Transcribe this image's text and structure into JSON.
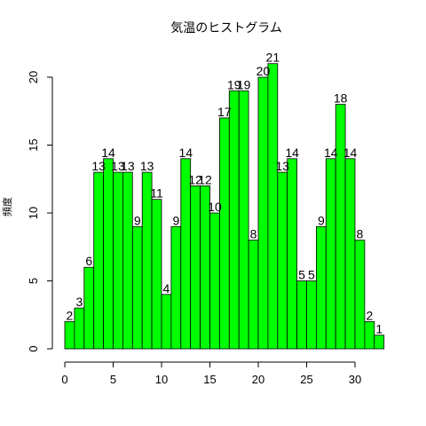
{
  "chart_data": {
    "type": "bar",
    "title": "気温のヒストグラム",
    "xlabel": "",
    "ylabel": "頻度",
    "bin_width": 1,
    "bin_start": 0,
    "values": [
      2,
      3,
      6,
      13,
      14,
      13,
      13,
      9,
      13,
      11,
      4,
      9,
      14,
      12,
      12,
      10,
      17,
      19,
      19,
      8,
      20,
      21,
      13,
      14,
      5,
      5,
      9,
      14,
      18,
      14,
      8,
      2,
      1
    ],
    "x_ticks": [
      0,
      5,
      10,
      15,
      20,
      25,
      30
    ],
    "y_ticks": [
      0,
      5,
      10,
      15,
      20
    ],
    "xlim": [
      0,
      33
    ],
    "ylim": [
      0,
      21
    ],
    "bar_color": "#00ff00",
    "data_labels": true,
    "grid": false,
    "legend": "none"
  }
}
